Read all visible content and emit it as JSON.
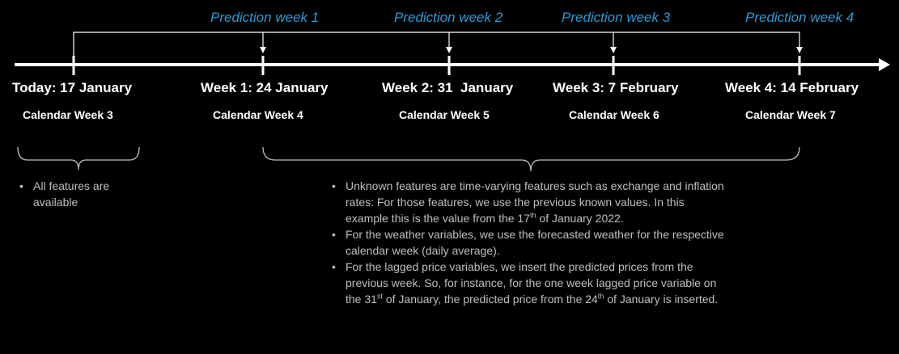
{
  "predictions": [
    {
      "label": "Prediction week 1"
    },
    {
      "label": "Prediction week 2"
    },
    {
      "label": "Prediction week 3"
    },
    {
      "label": "Prediction week 4"
    }
  ],
  "timeline": [
    {
      "date": "Today: 17 January",
      "calendar_week": "Calendar Week 3"
    },
    {
      "date": "Week 1: 24 January",
      "calendar_week": "Calendar Week 4"
    },
    {
      "date": "Week 2: 31  January",
      "calendar_week": "Calendar Week 5"
    },
    {
      "date": "Week 3: 7 February",
      "calendar_week": "Calendar Week 6"
    },
    {
      "date": "Week 4: 14 February",
      "calendar_week": "Calendar Week 7"
    }
  ],
  "notes_left": {
    "items": [
      "All features are available"
    ]
  },
  "notes_right": {
    "item1": "Unknown features are time-varying features such as exchange and inflation rates: For those features, we use the previous known values. In this example this is the value from the 17",
    "item1_sup": "th",
    "item1_tail": " of January 2022.",
    "item2": "For the weather variables, we use the forecasted weather for the respective calendar week (daily average).",
    "item3_a": "For the lagged price variables, we insert the predicted prices from the previous week.  So, for instance, for the one week lagged price variable on the 31",
    "item3_sup1": "st",
    "item3_b": " of January, the predicted price from the 24",
    "item3_sup2": "th",
    "item3_c": " of January is inserted."
  },
  "colors": {
    "background": "#000000",
    "accent": "#2b9bd6",
    "line": "#ffffff",
    "note_text": "#bfbfbf"
  }
}
